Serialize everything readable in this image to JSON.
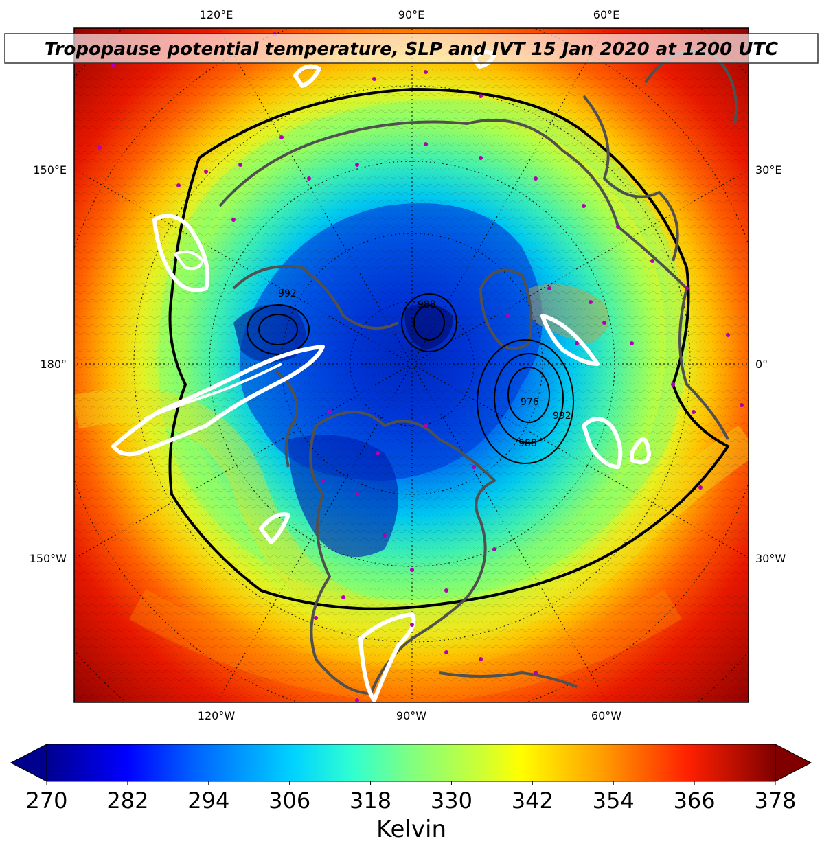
{
  "title": "Tropopause potential temperature, SLP and IVT 15 Jan 2020 at 1200 UTC",
  "map": {
    "projection": "north-polar-stereographic",
    "field": "tropopause potential temperature",
    "overlays": [
      "SLP contours",
      "IVT contours (white)",
      "coastlines",
      "lat/lon graticule (dotted)"
    ],
    "lon_labels": {
      "top": [
        "120°E",
        "90°E",
        "60°E"
      ],
      "bottom": [
        "120°W",
        "90°W",
        "60°W"
      ],
      "left": [
        "150°E",
        "180°",
        "150°W"
      ],
      "right": [
        "30°E",
        "0°",
        "30°W"
      ]
    },
    "slp_contour_labels": [
      "988",
      "976",
      "988",
      "992",
      "992"
    ],
    "low_centers": [
      {
        "name": "north-atlantic-low",
        "slp_min_label": "976"
      },
      {
        "name": "pole-low",
        "slp_min_label": "988"
      },
      {
        "name": "siberian-low",
        "slp_min_label": "992"
      }
    ],
    "colors": {
      "cold": "#00007f",
      "mid": "#7fff7f",
      "warm": "#7f0000",
      "ivt_contour": "#ffffff",
      "coast": "#505050",
      "markers": "#b000b0"
    }
  },
  "colorbar": {
    "label": "Kelvin",
    "min": 270,
    "max": 378,
    "ticks": [
      "270",
      "282",
      "294",
      "306",
      "318",
      "330",
      "342",
      "354",
      "366",
      "378"
    ],
    "colormap": "jet",
    "extend": "both"
  }
}
